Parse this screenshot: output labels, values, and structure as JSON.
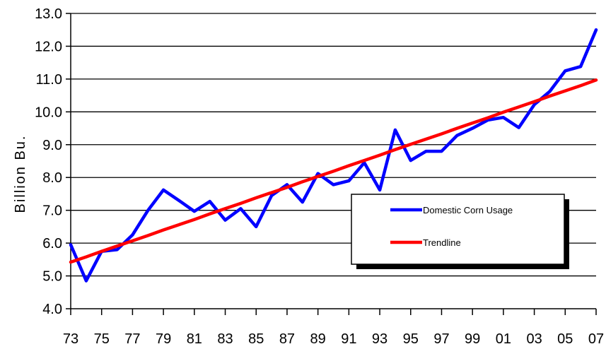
{
  "chart_data": {
    "type": "line",
    "ylabel": "Billion Bu.",
    "xlabel": "",
    "ylim": [
      4.0,
      13.0
    ],
    "ytick_labels": [
      "4.0",
      "5.0",
      "6.0",
      "7.0",
      "8.0",
      "9.0",
      "10.0",
      "11.0",
      "12.0",
      "13.0"
    ],
    "x": [
      "73",
      "74",
      "75",
      "76",
      "77",
      "78",
      "79",
      "80",
      "81",
      "82",
      "83",
      "84",
      "85",
      "86",
      "87",
      "88",
      "89",
      "90",
      "91",
      "92",
      "93",
      "94",
      "95",
      "96",
      "97",
      "98",
      "99",
      "00",
      "01",
      "02",
      "03",
      "04",
      "05",
      "06",
      "07"
    ],
    "xtick_labels": [
      "73",
      "75",
      "77",
      "79",
      "81",
      "83",
      "85",
      "87",
      "89",
      "91",
      "93",
      "95",
      "97",
      "99",
      "01",
      "03",
      "05",
      "07"
    ],
    "grid": "horizontal",
    "legend_placement": "lower-right",
    "series": [
      {
        "name": "Domestic Corn Usage",
        "color": "#0000ff",
        "values": [
          5.95,
          4.85,
          5.75,
          5.8,
          6.25,
          7.0,
          7.62,
          7.3,
          6.97,
          7.27,
          6.7,
          7.05,
          6.5,
          7.45,
          7.78,
          7.25,
          8.12,
          7.78,
          7.9,
          8.45,
          7.62,
          9.45,
          8.52,
          8.8,
          8.8,
          9.28,
          9.5,
          9.75,
          9.83,
          9.52,
          10.22,
          10.62,
          11.25,
          11.38,
          12.5
        ]
      },
      {
        "name": "Trendline",
        "color": "#ff0000",
        "values": [
          5.42,
          5.58,
          5.75,
          5.91,
          6.07,
          6.23,
          6.4,
          6.56,
          6.72,
          6.89,
          7.05,
          7.21,
          7.38,
          7.54,
          7.7,
          7.87,
          8.03,
          8.19,
          8.36,
          8.52,
          8.68,
          8.85,
          9.01,
          9.17,
          9.33,
          9.5,
          9.66,
          9.82,
          9.99,
          10.15,
          10.31,
          10.48,
          10.64,
          10.8,
          10.97
        ]
      }
    ]
  }
}
